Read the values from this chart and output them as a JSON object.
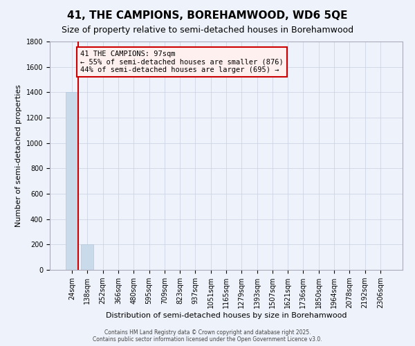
{
  "title": "41, THE CAMPIONS, BOREHAMWOOD, WD6 5QE",
  "subtitle": "Size of property relative to semi-detached houses in Borehamwood",
  "xlabel": "Distribution of semi-detached houses by size in Borehamwood",
  "ylabel": "Number of semi-detached properties",
  "bar_categories": [
    "24sqm",
    "138sqm",
    "252sqm",
    "366sqm",
    "480sqm",
    "595sqm",
    "709sqm",
    "823sqm",
    "937sqm",
    "1051sqm",
    "1165sqm",
    "1279sqm",
    "1393sqm",
    "1507sqm",
    "1621sqm",
    "1736sqm",
    "1850sqm",
    "1964sqm",
    "2078sqm",
    "2192sqm",
    "2306sqm"
  ],
  "bar_values": [
    1400,
    200,
    0,
    0,
    0,
    0,
    0,
    0,
    0,
    0,
    0,
    0,
    0,
    0,
    0,
    0,
    0,
    0,
    0,
    0,
    0
  ],
  "bar_color": "#c9daea",
  "bar_edge_color": "#b0c8dc",
  "ylim": [
    0,
    1800
  ],
  "yticks": [
    0,
    200,
    400,
    600,
    800,
    1000,
    1200,
    1400,
    1600,
    1800
  ],
  "property_label": "41 THE CAMPIONS: 97sqm",
  "pct_smaller": 55,
  "count_smaller": 876,
  "pct_larger": 44,
  "count_larger": 695,
  "red_line_color": "#cc0000",
  "annotation_bg": "#fff0f0",
  "annotation_edge": "#cc0000",
  "background_color": "#eef2fa",
  "grid_color": "#c8cfe0",
  "footer_line1": "Contains HM Land Registry data © Crown copyright and database right 2025.",
  "footer_line2": "Contains public sector information licensed under the Open Government Licence v3.0.",
  "title_fontsize": 11,
  "subtitle_fontsize": 9,
  "tick_fontsize": 7,
  "ylabel_fontsize": 8,
  "xlabel_fontsize": 8,
  "ann_fontsize": 7.5
}
